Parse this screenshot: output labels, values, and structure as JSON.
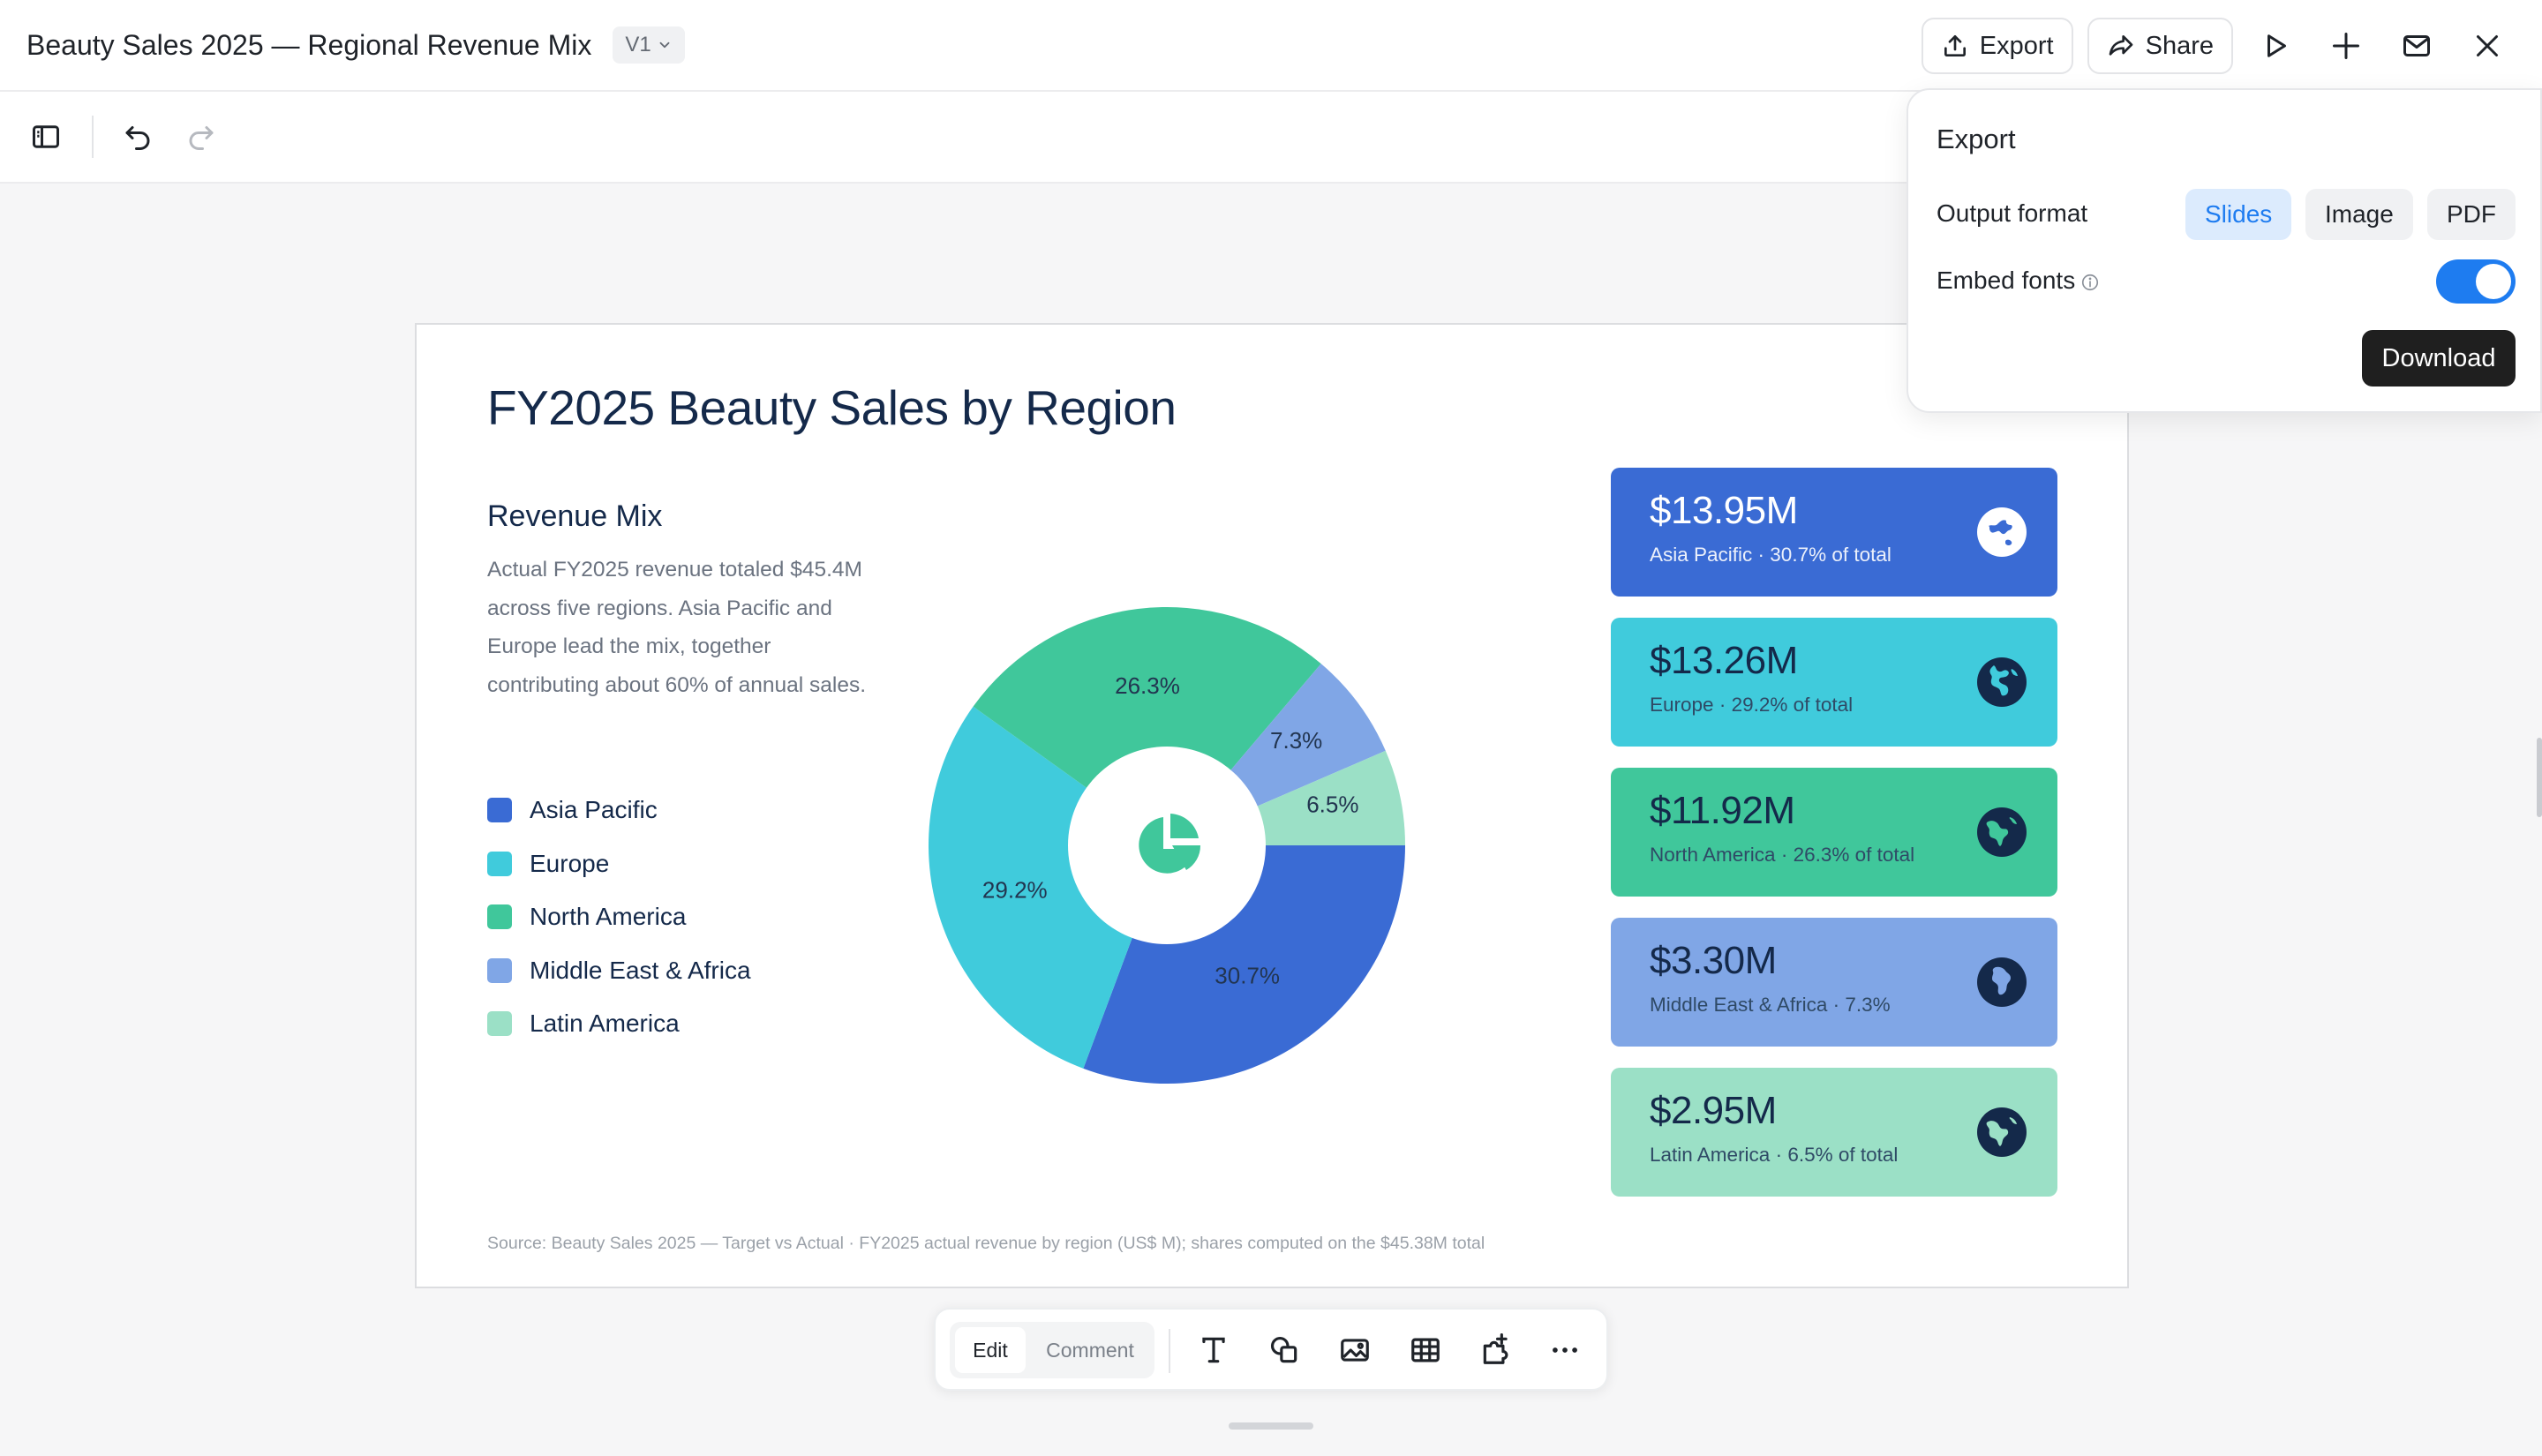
{
  "header": {
    "doc_title": "Beauty Sales 2025 — Regional Revenue Mix",
    "version": "V1",
    "export_label": "Export",
    "share_label": "Share"
  },
  "export_popover": {
    "title": "Export",
    "output_format_label": "Output format",
    "formats": [
      "Slides",
      "Image",
      "PDF"
    ],
    "selected_format": "Slides",
    "embed_fonts_label": "Embed fonts",
    "embed_fonts_on": true,
    "download_label": "Download"
  },
  "slide": {
    "title": "FY2025 Beauty Sales by Region",
    "mix_title": "Revenue Mix",
    "mix_description": "Actual FY2025 revenue totaled $45.4M across five regions. Asia Pacific and Europe lead the mix, together contributing about 60% of annual sales.",
    "legend": [
      {
        "label": "Asia Pacific",
        "color": "#3a6bd4"
      },
      {
        "label": "Europe",
        "color": "#40cbdc"
      },
      {
        "label": "North America",
        "color": "#40c79b"
      },
      {
        "label": "Middle East & Africa",
        "color": "#80a6e6"
      },
      {
        "label": "Latin America",
        "color": "#9be0c6"
      }
    ],
    "cards": [
      {
        "value": "$13.95M",
        "region": "Asia Pacific",
        "share": "30.7% of total",
        "color": "#3a6bd4",
        "icon": "globe-asia-icon"
      },
      {
        "value": "$13.26M",
        "region": "Europe",
        "share": "29.2% of total",
        "color": "#40cbdc",
        "icon": "globe-europe-icon"
      },
      {
        "value": "$11.92M",
        "region": "North America",
        "share": "26.3% of total",
        "color": "#40c79b",
        "icon": "globe-americas-icon"
      },
      {
        "value": "$3.30M",
        "region": "Middle East & Africa",
        "share": "7.3%",
        "color": "#80a6e6",
        "icon": "globe-africa-icon"
      },
      {
        "value": "$2.95M",
        "region": "Latin America",
        "share": "6.5% of total",
        "color": "#9be0c6",
        "icon": "globe-americas-icon"
      }
    ],
    "source": "Source: Beauty Sales 2025 — Target vs Actual · FY2025 actual revenue by region (US$ M); shares computed on the $45.38M total"
  },
  "chart_data": {
    "type": "pie",
    "categories": [
      "Asia Pacific",
      "Europe",
      "North America",
      "Middle East & Africa",
      "Latin America"
    ],
    "values": [
      30.7,
      29.2,
      26.3,
      7.3,
      6.5
    ],
    "labels": [
      "30.7%",
      "29.2%",
      "26.3%",
      "7.3%",
      "6.5%"
    ],
    "colors": [
      "#3a6bd4",
      "#40cbdc",
      "#40c79b",
      "#80a6e6",
      "#9be0c6"
    ],
    "donut": true,
    "center_icon": "pie-chart-icon"
  },
  "bottom_toolbar": {
    "edit_label": "Edit",
    "comment_label": "Comment",
    "tools": [
      "text-tool-icon",
      "shapes-tool-icon",
      "image-tool-icon",
      "table-tool-icon",
      "plugin-tool-icon",
      "more-icon"
    ]
  }
}
